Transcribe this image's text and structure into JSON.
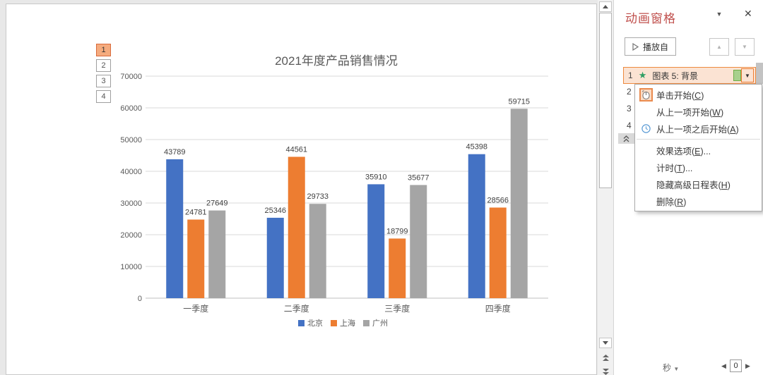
{
  "slide": {
    "animation_numbers": [
      "1",
      "2",
      "3",
      "4"
    ],
    "selected_number": "1"
  },
  "chart_data": {
    "type": "bar",
    "title": "2021年度产品销售情况",
    "categories": [
      "一季度",
      "二季度",
      "三季度",
      "四季度"
    ],
    "series": [
      {
        "name": "北京",
        "color": "#4472C4",
        "values": [
          43789,
          25346,
          35910,
          45398
        ]
      },
      {
        "name": "上海",
        "color": "#ED7D31",
        "values": [
          24781,
          44561,
          18799,
          28566
        ]
      },
      {
        "name": "广州",
        "color": "#A5A5A5",
        "values": [
          27649,
          29733,
          35677,
          59715
        ]
      }
    ],
    "ylim": [
      0,
      70000
    ],
    "ytick_step": 10000,
    "grid": true,
    "legend_position": "bottom",
    "data_labels": true
  },
  "panel": {
    "title": "动画窗格",
    "play_button": "播放自",
    "items": [
      {
        "order": "1",
        "star": "★",
        "label": "图表 5: 背景"
      },
      {
        "order": "2"
      },
      {
        "order": "3"
      },
      {
        "order": "4"
      }
    ],
    "footer": {
      "unit": "秒",
      "zoom_value": "0"
    }
  },
  "menu": {
    "items": [
      {
        "label": "单击开始(C)",
        "icon": "mouse-icon",
        "selected": true
      },
      {
        "label": "从上一项开始(W)"
      },
      {
        "label": "从上一项之后开始(A)",
        "icon": "clock-icon"
      },
      {
        "divider": true
      },
      {
        "label": "效果选项(E)..."
      },
      {
        "label": "计时(T)..."
      },
      {
        "label": "隐藏高级日程表(H)"
      },
      {
        "label": "删除(R)"
      }
    ]
  },
  "icon_glyphs": {
    "dropdown": "▼",
    "close": "✕",
    "up_arrow": "▲",
    "down_arrow": "▼",
    "left_arrow": "◀",
    "right_arrow": "▶",
    "star": "★"
  },
  "colors": {
    "accent_orange": "#ED7D31",
    "panel_title_red": "#C0504D",
    "star_green": "#2F9E63",
    "timing_bar_green": "#A8D08D",
    "selection_peach": "#FBE3D3",
    "axis_text": "#595959",
    "gridline": "#D9D9D9"
  }
}
